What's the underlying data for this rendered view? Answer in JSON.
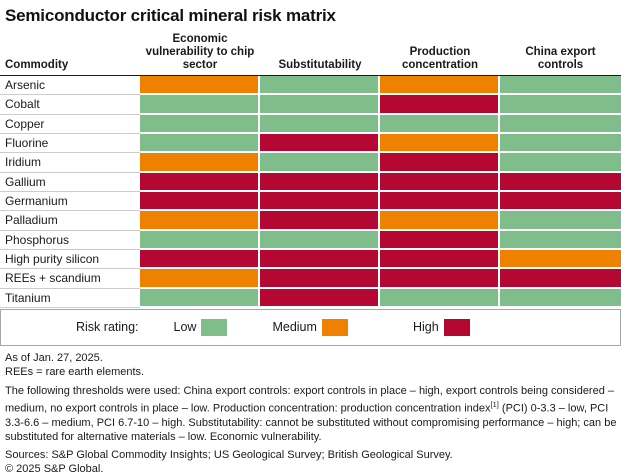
{
  "title": "Semiconductor critical mineral risk matrix",
  "chart_data": {
    "type": "heatmap",
    "title": "Semiconductor critical mineral risk matrix",
    "columns": [
      "Commodity",
      "Economic vulnerability to chip sector",
      "Substitutability",
      "Production concentration",
      "China export controls"
    ],
    "rows": [
      "Arsenic",
      "Cobalt",
      "Copper",
      "Fluorine",
      "Iridium",
      "Gallium",
      "Germanium",
      "Palladium",
      "Phosphorus",
      "High purity silicon",
      "REEs + scandium",
      "Titanium"
    ],
    "values": [
      [
        "medium",
        "low",
        "medium",
        "low"
      ],
      [
        "low",
        "low",
        "high",
        "low"
      ],
      [
        "low",
        "low",
        "low",
        "low"
      ],
      [
        "low",
        "high",
        "medium",
        "low"
      ],
      [
        "medium",
        "low",
        "high",
        "low"
      ],
      [
        "high",
        "high",
        "high",
        "high"
      ],
      [
        "high",
        "high",
        "high",
        "high"
      ],
      [
        "medium",
        "high",
        "medium",
        "low"
      ],
      [
        "low",
        "low",
        "high",
        "low"
      ],
      [
        "high",
        "high",
        "high",
        "medium"
      ],
      [
        "medium",
        "high",
        "high",
        "high"
      ],
      [
        "low",
        "high",
        "low",
        "low"
      ]
    ],
    "colors": {
      "low": "#7FBE8B",
      "medium": "#EE8100",
      "high": "#B40731"
    },
    "legend_position": "bottom",
    "legend": {
      "label": "Risk rating:",
      "items": [
        {
          "label": "Low",
          "level": "low"
        },
        {
          "label": "Medium",
          "level": "medium"
        },
        {
          "label": "High",
          "level": "high"
        }
      ]
    }
  },
  "footer": {
    "as_of": "As of Jan. 27, 2025.",
    "rees_note": "REEs = rare earth elements.",
    "thresholds_before_sup": "The following thresholds were used: China export controls: export controls in place – high, export controls being considered – medium, no export controls in place – low. Production concentration: production concentration index",
    "thresholds_sup": "[1]",
    "thresholds_after_sup": " (PCI) 0-3.3 – low, PCI 3.3-6.6 – medium, PCI 6.7-10 – high. Substitutability: cannot be substituted without compromising performance – high; can be substituted for alternative materials – low. Economic vulnerability.",
    "sources": "Sources: S&P Global Commodity Insights; US Geological Survey; British Geological Survey.",
    "copyright": "© 2025 S&P Global."
  }
}
